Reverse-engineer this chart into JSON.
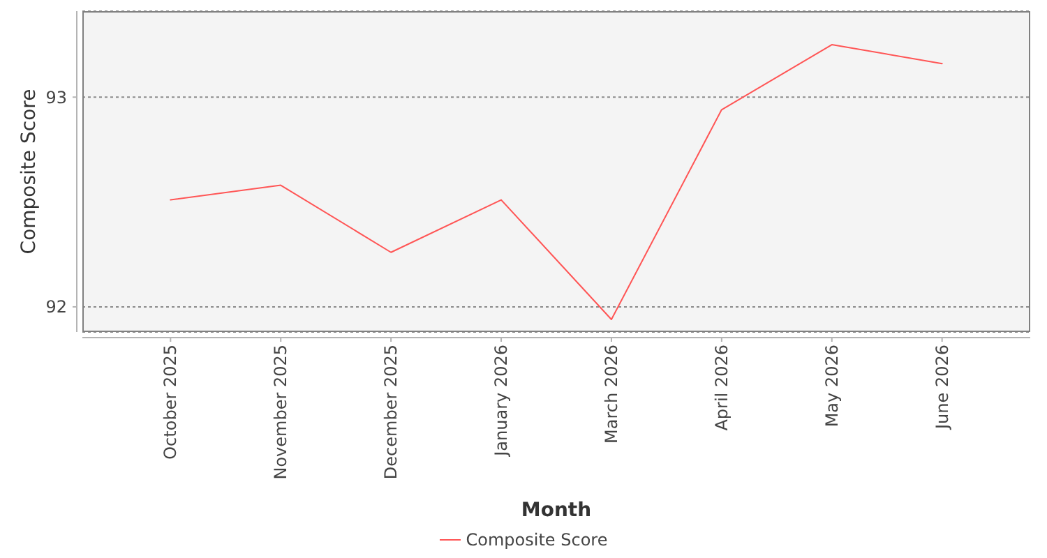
{
  "chart_data": {
    "type": "line",
    "xlabel": "Month",
    "ylabel": "Composite Score",
    "categories": [
      "October 2025",
      "November 2025",
      "December 2025",
      "January 2026",
      "March 2026",
      "April 2026",
      "May 2026",
      "June 2026"
    ],
    "series": [
      {
        "name": "Composite Score",
        "color": "#ff5555",
        "values": [
          92.51,
          92.58,
          92.26,
          92.51,
          91.94,
          92.94,
          93.25,
          93.16
        ]
      }
    ],
    "ylim": [
      91.88,
      93.41
    ],
    "yticks": [
      92,
      93
    ],
    "grid": "y",
    "legend": "bottom",
    "marker": "none",
    "line_style": "solid"
  }
}
